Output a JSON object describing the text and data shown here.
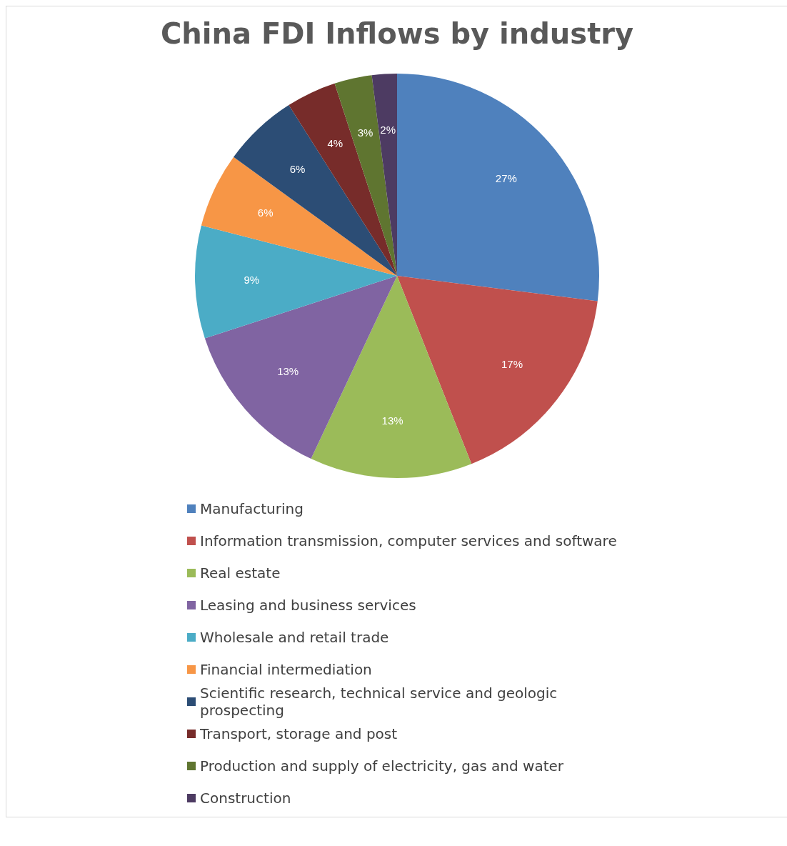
{
  "chart_data": {
    "type": "pie",
    "title": "China FDI Inflows by industry",
    "categories": [
      "Manufacturing",
      "Information transmission, computer services and software",
      "Real estate",
      "Leasing and business services",
      "Wholesale and retail trade",
      "Financial intermediation",
      "Scientific research, technical service and geologic prospecting",
      "Transport, storage and post",
      "Production and supply of electricity, gas and water",
      "Construction"
    ],
    "values": [
      27,
      17,
      13,
      13,
      9,
      6,
      6,
      4,
      3,
      2
    ],
    "value_labels": [
      "27%",
      "17%",
      "13%",
      "13%",
      "9%",
      "6%",
      "6%",
      "4%",
      "3%",
      "2%"
    ],
    "colors": [
      "#4f81bd",
      "#c0504d",
      "#9bbb59",
      "#8064a2",
      "#4bacc6",
      "#f79646",
      "#2c4d75",
      "#772c2a",
      "#5f7530",
      "#4d3b62"
    ],
    "legend": "bottom"
  }
}
